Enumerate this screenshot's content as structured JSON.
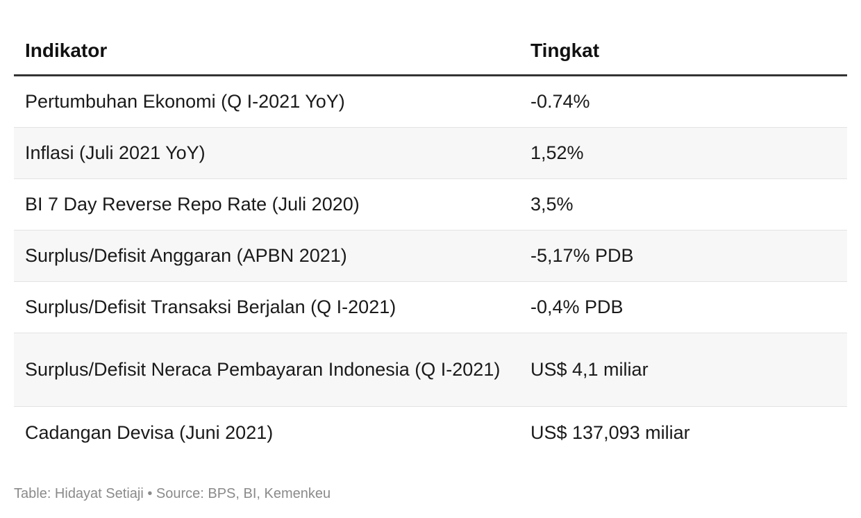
{
  "chart_data": {
    "type": "table",
    "columns": [
      "Indikator",
      "Tingkat"
    ],
    "rows": [
      {
        "indikator": "Pertumbuhan Ekonomi (Q I-2021 YoY)",
        "tingkat": "-0.74%"
      },
      {
        "indikator": "Inflasi (Juli 2021 YoY)",
        "tingkat": "1,52%"
      },
      {
        "indikator": "BI 7 Day Reverse Repo Rate (Juli 2020)",
        "tingkat": "3,5%"
      },
      {
        "indikator": "Surplus/Defisit Anggaran (APBN 2021)",
        "tingkat": "-5,17% PDB"
      },
      {
        "indikator": "Surplus/Defisit Transaksi Berjalan (Q I-2021)",
        "tingkat": "-0,4% PDB"
      },
      {
        "indikator": "Surplus/Defisit Neraca Pembayaran Indonesia (Q I-2021)",
        "tingkat": "US$ 4,1 miliar"
      },
      {
        "indikator": "Cadangan Devisa (Juni 2021)",
        "tingkat": "US$ 137,093 miliar"
      }
    ],
    "footer": "Table: Hidayat Setiaji • Source: BPS, BI, Kemenkeu"
  },
  "colors": {
    "header_rule": "#333333",
    "row_alt_background": "#f7f7f7",
    "row_divider": "#e3e3e3",
    "footer_text": "#8a8a8a"
  }
}
